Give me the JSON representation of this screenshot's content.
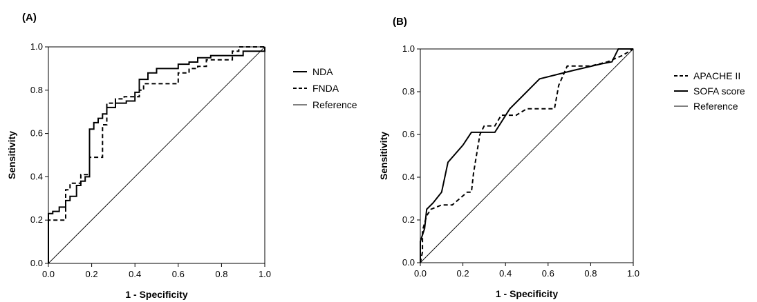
{
  "chart_data": [
    {
      "type": "line",
      "panel_label": "(A)",
      "xlabel": "1 - Specificity",
      "ylabel": "Sensitivity",
      "xlim": [
        0,
        1
      ],
      "ylim": [
        0,
        1
      ],
      "x_ticks": [
        "0.0",
        "0.2",
        "0.4",
        "0.6",
        "0.8",
        "1.0"
      ],
      "y_ticks": [
        "0.0",
        "0.2",
        "0.4",
        "0.6",
        "0.8",
        "1.0"
      ],
      "grid": false,
      "legend_position": "right",
      "series": [
        {
          "name": "NDA",
          "style": "solid",
          "points": [
            [
              0,
              0
            ],
            [
              0,
              0.23
            ],
            [
              0.02,
              0.23
            ],
            [
              0.02,
              0.24
            ],
            [
              0.05,
              0.24
            ],
            [
              0.05,
              0.26
            ],
            [
              0.08,
              0.26
            ],
            [
              0.08,
              0.29
            ],
            [
              0.1,
              0.29
            ],
            [
              0.1,
              0.31
            ],
            [
              0.13,
              0.31
            ],
            [
              0.13,
              0.36
            ],
            [
              0.15,
              0.36
            ],
            [
              0.15,
              0.38
            ],
            [
              0.17,
              0.38
            ],
            [
              0.17,
              0.4
            ],
            [
              0.19,
              0.4
            ],
            [
              0.19,
              0.62
            ],
            [
              0.21,
              0.62
            ],
            [
              0.21,
              0.65
            ],
            [
              0.23,
              0.65
            ],
            [
              0.23,
              0.67
            ],
            [
              0.25,
              0.67
            ],
            [
              0.25,
              0.69
            ],
            [
              0.27,
              0.69
            ],
            [
              0.27,
              0.72
            ],
            [
              0.31,
              0.72
            ],
            [
              0.31,
              0.74
            ],
            [
              0.36,
              0.74
            ],
            [
              0.36,
              0.75
            ],
            [
              0.4,
              0.75
            ],
            [
              0.4,
              0.79
            ],
            [
              0.42,
              0.79
            ],
            [
              0.42,
              0.85
            ],
            [
              0.46,
              0.85
            ],
            [
              0.46,
              0.88
            ],
            [
              0.5,
              0.88
            ],
            [
              0.5,
              0.9
            ],
            [
              0.6,
              0.9
            ],
            [
              0.6,
              0.92
            ],
            [
              0.65,
              0.92
            ],
            [
              0.65,
              0.93
            ],
            [
              0.69,
              0.93
            ],
            [
              0.69,
              0.95
            ],
            [
              0.75,
              0.95
            ],
            [
              0.75,
              0.96
            ],
            [
              0.9,
              0.96
            ],
            [
              0.9,
              0.98
            ],
            [
              1,
              0.98
            ],
            [
              1,
              1
            ]
          ]
        },
        {
          "name": "FNDA",
          "style": "dashed",
          "points": [
            [
              0,
              0
            ],
            [
              0,
              0.2
            ],
            [
              0.08,
              0.2
            ],
            [
              0.08,
              0.34
            ],
            [
              0.1,
              0.34
            ],
            [
              0.1,
              0.37
            ],
            [
              0.15,
              0.37
            ],
            [
              0.15,
              0.41
            ],
            [
              0.19,
              0.41
            ],
            [
              0.19,
              0.49
            ],
            [
              0.25,
              0.49
            ],
            [
              0.25,
              0.64
            ],
            [
              0.27,
              0.64
            ],
            [
              0.27,
              0.74
            ],
            [
              0.31,
              0.74
            ],
            [
              0.31,
              0.76
            ],
            [
              0.35,
              0.76
            ],
            [
              0.35,
              0.77
            ],
            [
              0.38,
              0.77
            ],
            [
              0.38,
              0.77
            ],
            [
              0.42,
              0.77
            ],
            [
              0.42,
              0.8
            ],
            [
              0.44,
              0.8
            ],
            [
              0.44,
              0.83
            ],
            [
              0.6,
              0.83
            ],
            [
              0.6,
              0.88
            ],
            [
              0.65,
              0.88
            ],
            [
              0.65,
              0.9
            ],
            [
              0.69,
              0.9
            ],
            [
              0.69,
              0.91
            ],
            [
              0.73,
              0.91
            ],
            [
              0.73,
              0.94
            ],
            [
              0.85,
              0.94
            ],
            [
              0.85,
              0.98
            ],
            [
              0.88,
              0.98
            ],
            [
              0.88,
              1
            ],
            [
              1,
              1
            ]
          ]
        },
        {
          "name": "Reference",
          "style": "thin",
          "points": [
            [
              0,
              0
            ],
            [
              1,
              1
            ]
          ]
        }
      ]
    },
    {
      "type": "line",
      "panel_label": "(B)",
      "xlabel": "1 - Specificity",
      "ylabel": "Sensitivity",
      "xlim": [
        0,
        1
      ],
      "ylim": [
        0,
        1
      ],
      "x_ticks": [
        "0.0",
        "0.2",
        "0.4",
        "0.6",
        "0.8",
        "1.0"
      ],
      "y_ticks": [
        "0.0",
        "0.2",
        "0.4",
        "0.6",
        "0.8",
        "1.0"
      ],
      "grid": false,
      "legend_position": "right",
      "series": [
        {
          "name": "APACHE II",
          "style": "dashed",
          "points": [
            [
              0,
              0
            ],
            [
              0.01,
              0.05
            ],
            [
              0.01,
              0.15
            ],
            [
              0.03,
              0.22
            ],
            [
              0.05,
              0.25
            ],
            [
              0.1,
              0.27
            ],
            [
              0.15,
              0.27
            ],
            [
              0.22,
              0.33
            ],
            [
              0.24,
              0.33
            ],
            [
              0.25,
              0.42
            ],
            [
              0.28,
              0.6
            ],
            [
              0.3,
              0.64
            ],
            [
              0.35,
              0.64
            ],
            [
              0.38,
              0.69
            ],
            [
              0.45,
              0.69
            ],
            [
              0.5,
              0.72
            ],
            [
              0.63,
              0.72
            ],
            [
              0.65,
              0.83
            ],
            [
              0.69,
              0.92
            ],
            [
              0.8,
              0.92
            ],
            [
              0.88,
              0.94
            ],
            [
              0.95,
              0.97
            ],
            [
              1,
              1
            ]
          ]
        },
        {
          "name": "SOFA score",
          "style": "solid",
          "points": [
            [
              0,
              0
            ],
            [
              0,
              0.1
            ],
            [
              0.02,
              0.16
            ],
            [
              0.03,
              0.25
            ],
            [
              0.06,
              0.28
            ],
            [
              0.1,
              0.33
            ],
            [
              0.13,
              0.47
            ],
            [
              0.2,
              0.55
            ],
            [
              0.24,
              0.61
            ],
            [
              0.35,
              0.61
            ],
            [
              0.42,
              0.72
            ],
            [
              0.56,
              0.86
            ],
            [
              0.72,
              0.9
            ],
            [
              0.85,
              0.93
            ],
            [
              0.9,
              0.94
            ],
            [
              0.93,
              1
            ],
            [
              1,
              1
            ]
          ]
        },
        {
          "name": "Reference",
          "style": "thin",
          "points": [
            [
              0,
              0
            ],
            [
              1,
              1
            ]
          ]
        }
      ]
    }
  ]
}
